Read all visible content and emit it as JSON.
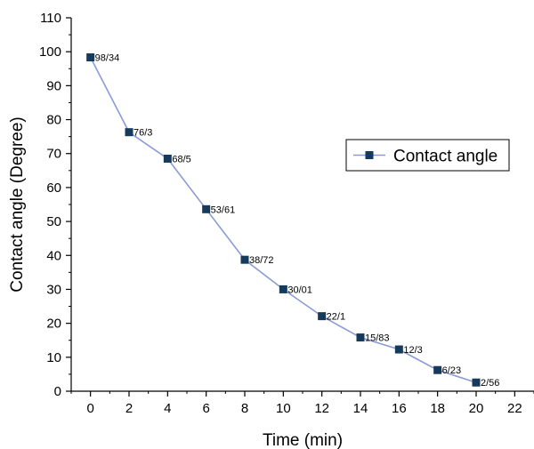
{
  "chart_data": {
    "type": "line",
    "xlabel": "Time (min)",
    "ylabel": "Contact angle (Degree)",
    "xlim": [
      -1,
      23
    ],
    "ylim": [
      0,
      110
    ],
    "x_ticks": [
      0,
      2,
      4,
      6,
      8,
      10,
      12,
      14,
      16,
      18,
      20,
      22
    ],
    "y_ticks": [
      0,
      10,
      20,
      30,
      40,
      50,
      60,
      70,
      80,
      90,
      100,
      110
    ],
    "grid": false,
    "legend_position": "right",
    "series": [
      {
        "name": "Contact angle",
        "color": "#8a9bd6",
        "marker_color": "#153a5c",
        "x": [
          0,
          2,
          4,
          6,
          8,
          10,
          12,
          14,
          16,
          18,
          20
        ],
        "y": [
          98.34,
          76.3,
          68.5,
          53.61,
          38.72,
          30.01,
          22.1,
          15.83,
          12.3,
          6.23,
          2.56
        ],
        "labels": [
          "98/34",
          "76/3",
          "68/5",
          "53/61",
          "38/72",
          "30/01",
          "22/1",
          "15/83",
          "12/3",
          "6/23",
          "2/56"
        ]
      }
    ]
  }
}
